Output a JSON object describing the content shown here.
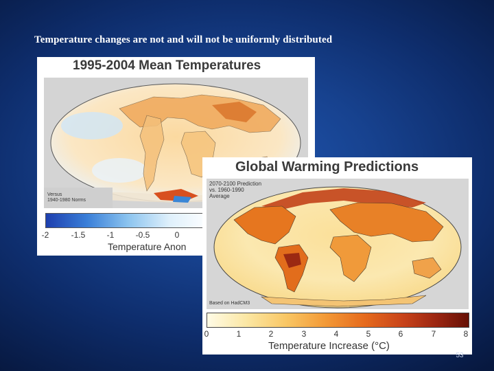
{
  "slide": {
    "title": "Temperature changes are not and will not be uniformly distributed",
    "page_number": "53"
  },
  "figure_1": {
    "title": "1995-2004 Mean Temperatures",
    "note_line1": "Versus",
    "note_line2": "1940-1980 Norms",
    "colorbar_ticks": [
      "-2",
      "-1.5",
      "-1",
      "-0.5",
      "0"
    ],
    "colorbar_title": "Temperature Anon"
  },
  "figure_2": {
    "title": "Global Warming Predictions",
    "note_line1": "2070-2100 Prediction",
    "note_line2": "vs. 1960-1990",
    "note_line3": "Average",
    "source": "Based on HadCM3",
    "colorbar_ticks": [
      "0",
      "1",
      "2",
      "3",
      "4",
      "5",
      "6",
      "7",
      "8"
    ],
    "colorbar_title": "Temperature Increase (°C)"
  },
  "colors": {
    "background": "#1a4aa0",
    "fig1_scale": [
      "#1e3fae",
      "#3a7fd8",
      "#8cc4ef",
      "#dff0fb",
      "#ffffff"
    ],
    "fig2_scale": [
      "#fffbe6",
      "#fbe7a4",
      "#f9c765",
      "#f39a37",
      "#e66b1d",
      "#c8431a",
      "#9a2511",
      "#661005"
    ]
  }
}
